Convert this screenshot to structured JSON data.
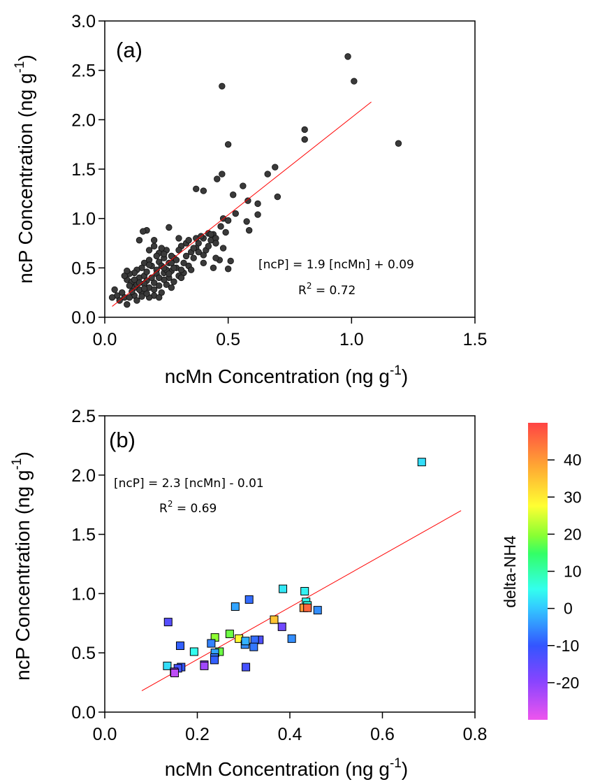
{
  "chart_data": [
    {
      "type": "scatter",
      "panel_label": "(a)",
      "xlabel": "ncMn Concentration (ng g",
      "ylabel": "ncP Concentration (ng g",
      "unit_exponent": "-1",
      "unit_close": ")",
      "xlim": [
        0,
        1.5
      ],
      "ylim": [
        0,
        3.0
      ],
      "x_ticks": [
        "0.0",
        "0.5",
        "1.0",
        "1.5"
      ],
      "y_ticks": [
        "0.0",
        "0.5",
        "1.0",
        "1.5",
        "2.0",
        "2.5",
        "3.0"
      ],
      "marker": "circle",
      "marker_color": "#3a3a3a",
      "fit_line": {
        "x": [
          0.03,
          1.08
        ],
        "y": [
          0.11,
          2.18
        ],
        "color": "#ff0000"
      },
      "equation": "[ncP] = 1.9 [ncMn] + 0.09",
      "r2_prefix": "R",
      "r2_exp": "2",
      "r2_value": " = 0.72",
      "points": [
        [
          0.985,
          2.64
        ],
        [
          1.01,
          2.39
        ],
        [
          0.475,
          2.34
        ],
        [
          0.81,
          1.9
        ],
        [
          0.81,
          1.8
        ],
        [
          1.19,
          1.76
        ],
        [
          0.5,
          1.75
        ],
        [
          0.69,
          1.52
        ],
        [
          0.66,
          1.45
        ],
        [
          0.475,
          1.45
        ],
        [
          0.455,
          1.4
        ],
        [
          0.56,
          1.33
        ],
        [
          0.37,
          1.3
        ],
        [
          0.4,
          1.28
        ],
        [
          0.62,
          1.15
        ],
        [
          0.7,
          1.22
        ],
        [
          0.58,
          1.18
        ],
        [
          0.52,
          1.24
        ],
        [
          0.62,
          1.04
        ],
        [
          0.48,
          1.0
        ],
        [
          0.53,
          1.05
        ],
        [
          0.5,
          0.98
        ],
        [
          0.575,
          0.97
        ],
        [
          0.47,
          0.92
        ],
        [
          0.585,
          0.88
        ],
        [
          0.44,
          0.84
        ],
        [
          0.49,
          0.86
        ],
        [
          0.42,
          0.85
        ],
        [
          0.43,
          0.78
        ],
        [
          0.4,
          0.8
        ],
        [
          0.38,
          0.75
        ],
        [
          0.37,
          0.7
        ],
        [
          0.35,
          0.66
        ],
        [
          0.4,
          0.63
        ],
        [
          0.45,
          0.8
        ],
        [
          0.48,
          0.7
        ],
        [
          0.51,
          0.57
        ],
        [
          0.465,
          0.58
        ],
        [
          0.44,
          0.5
        ],
        [
          0.5,
          0.49
        ],
        [
          0.41,
          0.68
        ],
        [
          0.4,
          0.55
        ],
        [
          0.36,
          0.6
        ],
        [
          0.33,
          0.75
        ],
        [
          0.31,
          0.72
        ],
        [
          0.3,
          0.8
        ],
        [
          0.34,
          0.52
        ],
        [
          0.32,
          0.55
        ],
        [
          0.29,
          0.5
        ],
        [
          0.27,
          0.47
        ],
        [
          0.25,
          0.68
        ],
        [
          0.24,
          0.6
        ],
        [
          0.22,
          0.65
        ],
        [
          0.2,
          0.72
        ],
        [
          0.18,
          0.68
        ],
        [
          0.26,
          0.91
        ],
        [
          0.17,
          0.88
        ],
        [
          0.155,
          0.87
        ],
        [
          0.14,
          0.78
        ],
        [
          0.2,
          0.78
        ],
        [
          0.23,
          0.7
        ],
        [
          0.22,
          0.56
        ],
        [
          0.28,
          0.6
        ],
        [
          0.26,
          0.4
        ],
        [
          0.24,
          0.45
        ],
        [
          0.21,
          0.48
        ],
        [
          0.19,
          0.52
        ],
        [
          0.18,
          0.58
        ],
        [
          0.16,
          0.55
        ],
        [
          0.15,
          0.5
        ],
        [
          0.13,
          0.48
        ],
        [
          0.12,
          0.45
        ],
        [
          0.1,
          0.44
        ],
        [
          0.09,
          0.38
        ],
        [
          0.08,
          0.42
        ],
        [
          0.11,
          0.36
        ],
        [
          0.14,
          0.4
        ],
        [
          0.16,
          0.42
        ],
        [
          0.17,
          0.37
        ],
        [
          0.18,
          0.3
        ],
        [
          0.2,
          0.35
        ],
        [
          0.22,
          0.32
        ],
        [
          0.25,
          0.33
        ],
        [
          0.27,
          0.3
        ],
        [
          0.3,
          0.42
        ],
        [
          0.32,
          0.45
        ],
        [
          0.35,
          0.48
        ],
        [
          0.23,
          0.25
        ],
        [
          0.2,
          0.22
        ],
        [
          0.18,
          0.2
        ],
        [
          0.15,
          0.25
        ],
        [
          0.14,
          0.28
        ],
        [
          0.12,
          0.3
        ],
        [
          0.1,
          0.32
        ],
        [
          0.07,
          0.25
        ],
        [
          0.05,
          0.22
        ],
        [
          0.04,
          0.28
        ],
        [
          0.03,
          0.2
        ],
        [
          0.06,
          0.17
        ],
        [
          0.08,
          0.2
        ],
        [
          0.09,
          0.13
        ],
        [
          0.12,
          0.22
        ],
        [
          0.15,
          0.21
        ],
        [
          0.17,
          0.24
        ],
        [
          0.2,
          0.28
        ],
        [
          0.22,
          0.2
        ],
        [
          0.24,
          0.38
        ],
        [
          0.26,
          0.55
        ],
        [
          0.28,
          0.5
        ],
        [
          0.31,
          0.48
        ],
        [
          0.33,
          0.62
        ],
        [
          0.36,
          0.7
        ],
        [
          0.38,
          0.66
        ],
        [
          0.42,
          0.72
        ],
        [
          0.45,
          0.6
        ],
        [
          0.27,
          0.62
        ],
        [
          0.29,
          0.58
        ],
        [
          0.23,
          0.52
        ],
        [
          0.21,
          0.44
        ],
        [
          0.19,
          0.4
        ],
        [
          0.17,
          0.46
        ],
        [
          0.16,
          0.34
        ],
        [
          0.13,
          0.33
        ],
        [
          0.11,
          0.26
        ],
        [
          0.1,
          0.2
        ],
        [
          0.13,
          0.17
        ],
        [
          0.16,
          0.29
        ],
        [
          0.25,
          0.48
        ],
        [
          0.3,
          0.68
        ],
        [
          0.34,
          0.78
        ],
        [
          0.37,
          0.8
        ],
        [
          0.39,
          0.82
        ],
        [
          0.43,
          0.84
        ],
        [
          0.45,
          0.75
        ],
        [
          0.24,
          0.5
        ],
        [
          0.22,
          0.4
        ],
        [
          0.26,
          0.44
        ],
        [
          0.28,
          0.36
        ],
        [
          0.31,
          0.4
        ],
        [
          0.14,
          0.35
        ],
        [
          0.12,
          0.38
        ],
        [
          0.09,
          0.47
        ],
        [
          0.18,
          0.53
        ],
        [
          0.21,
          0.62
        ],
        [
          0.24,
          0.64
        ],
        [
          0.27,
          0.55
        ]
      ]
    },
    {
      "type": "scatter",
      "panel_label": "(b)",
      "xlabel": "ncMn Concentration (ng g",
      "ylabel": "ncP Concentration (ng g",
      "unit_exponent": "-1",
      "unit_close": ")",
      "xlim": [
        0,
        0.8
      ],
      "ylim": [
        0,
        2.5
      ],
      "x_ticks": [
        "0.0",
        "0.2",
        "0.4",
        "0.6",
        "0.8"
      ],
      "y_ticks": [
        "0.0",
        "0.5",
        "1.0",
        "1.5",
        "2.0",
        "2.5"
      ],
      "marker": "square",
      "fit_line": {
        "x": [
          0.08,
          0.77
        ],
        "y": [
          0.18,
          1.7
        ],
        "color": "#ff0000"
      },
      "equation": "[ncP] = 2.3 [ncMn] - 0.01",
      "r2_prefix": "R",
      "r2_exp": "2",
      "r2_value": " = 0.69",
      "colorbar": {
        "title": "delta-NH4",
        "range": [
          -30,
          50
        ],
        "ticks": [
          40,
          30,
          20,
          10,
          0,
          -10,
          -20
        ],
        "tick_labels": [
          "40",
          "30",
          "20",
          "10",
          "0",
          "-10",
          "-20"
        ]
      },
      "points": [
        {
          "x": 0.685,
          "y": 2.11,
          "c": 2
        },
        {
          "x": 0.385,
          "y": 1.04,
          "c": 3
        },
        {
          "x": 0.432,
          "y": 1.02,
          "c": 4
        },
        {
          "x": 0.312,
          "y": 0.95,
          "c": -8
        },
        {
          "x": 0.282,
          "y": 0.89,
          "c": -3
        },
        {
          "x": 0.435,
          "y": 0.93,
          "c": 5
        },
        {
          "x": 0.438,
          "y": 0.9,
          "c": 6
        },
        {
          "x": 0.46,
          "y": 0.86,
          "c": -5
        },
        {
          "x": 0.43,
          "y": 0.88,
          "c": 40
        },
        {
          "x": 0.438,
          "y": 0.88,
          "c": 46
        },
        {
          "x": 0.366,
          "y": 0.78,
          "c": 35
        },
        {
          "x": 0.137,
          "y": 0.76,
          "c": -14
        },
        {
          "x": 0.383,
          "y": 0.72,
          "c": -17
        },
        {
          "x": 0.27,
          "y": 0.66,
          "c": 18
        },
        {
          "x": 0.29,
          "y": 0.62,
          "c": 28
        },
        {
          "x": 0.238,
          "y": 0.63,
          "c": 20
        },
        {
          "x": 0.334,
          "y": 0.61,
          "c": -13
        },
        {
          "x": 0.324,
          "y": 0.61,
          "c": -8
        },
        {
          "x": 0.404,
          "y": 0.62,
          "c": -5
        },
        {
          "x": 0.23,
          "y": 0.58,
          "c": -6
        },
        {
          "x": 0.303,
          "y": 0.57,
          "c": -5
        },
        {
          "x": 0.304,
          "y": 0.6,
          "c": -2
        },
        {
          "x": 0.163,
          "y": 0.56,
          "c": -9
        },
        {
          "x": 0.322,
          "y": 0.55,
          "c": -7
        },
        {
          "x": 0.248,
          "y": 0.51,
          "c": 18
        },
        {
          "x": 0.193,
          "y": 0.51,
          "c": 5
        },
        {
          "x": 0.238,
          "y": 0.5,
          "c": -3
        },
        {
          "x": 0.237,
          "y": 0.46,
          "c": -7
        },
        {
          "x": 0.237,
          "y": 0.44,
          "c": -9
        },
        {
          "x": 0.215,
          "y": 0.4,
          "c": -18
        },
        {
          "x": 0.215,
          "y": 0.39,
          "c": -22
        },
        {
          "x": 0.135,
          "y": 0.39,
          "c": 2
        },
        {
          "x": 0.165,
          "y": 0.38,
          "c": -10
        },
        {
          "x": 0.305,
          "y": 0.38,
          "c": -12
        },
        {
          "x": 0.158,
          "y": 0.37,
          "c": -12
        },
        {
          "x": 0.15,
          "y": 0.34,
          "c": -22
        },
        {
          "x": 0.151,
          "y": 0.33,
          "c": -25
        }
      ]
    }
  ]
}
